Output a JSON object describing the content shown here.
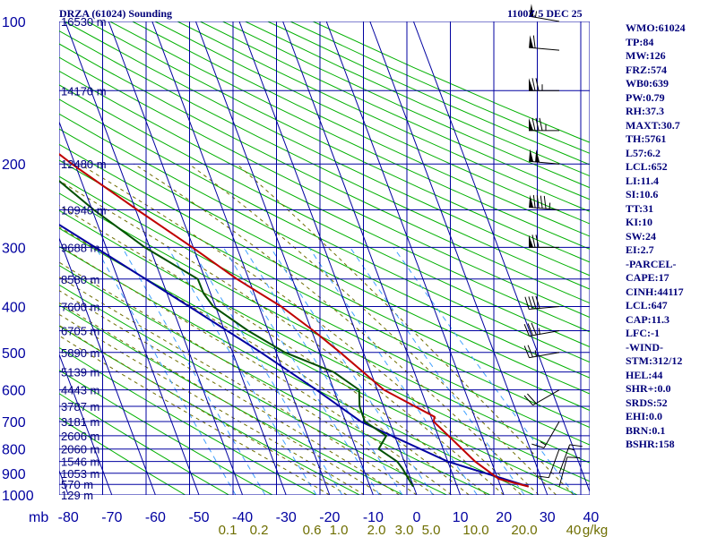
{
  "header": {
    "title": "DRZA (61024) Sounding",
    "time": "1100Z  5 DEC 25"
  },
  "indices": [
    "WMO:61024",
    "TP:84",
    "MW:126",
    "FRZ:574",
    "WB0:639",
    "PW:0.79",
    "RH:37.3",
    "MAXT:30.7",
    "TH:5761",
    "L57:6.2",
    "LCL:652",
    "LI:11.4",
    "SI:10.6",
    "TT:31",
    "KI:10",
    "SW:24",
    "EI:2.7",
    "-PARCEL-",
    "CAPE:17",
    "CINH:44117",
    "LCL:647",
    "CAP:11.3",
    "LFC:-1",
    "-WIND-",
    "STM:312/12",
    "HEL:44",
    "SHR+:0.0",
    "SRDS:52",
    "EHI:0.0",
    "BRN:0.1",
    "BSHR:158"
  ],
  "colors": {
    "temperature": "#c00000",
    "dewpoint": "#005000",
    "parcel": "#0000a0",
    "grid": "#0000a0",
    "dry_adiabats": "#00b000",
    "moist_adiabats": "#6e6e00",
    "mixing_ratio": "#40a0ff",
    "labels": "#00007a"
  },
  "chart_data": {
    "type": "skew-t",
    "units_label": "mb",
    "pressure_ticks": [
      "100",
      "200",
      "300",
      "400",
      "500",
      "600",
      "700",
      "800",
      "900",
      "1000"
    ],
    "pressure_levels": [
      100,
      200,
      300,
      400,
      500,
      600,
      700,
      800,
      900,
      1000
    ],
    "temperature_ticks": [
      "-80",
      "-70",
      "-60",
      "-50",
      "-40",
      "-30",
      "-20",
      "-10",
      "0",
      "10",
      "20",
      "30",
      "40"
    ],
    "temperature_values": [
      -80,
      -70,
      -60,
      -50,
      -40,
      -30,
      -20,
      -10,
      0,
      10,
      20,
      30,
      40
    ],
    "mixing_ratio_ticks": [
      "0.1",
      "0.2",
      "0.6",
      "1.0",
      "2.0",
      "3.0",
      "5.0",
      "10.0",
      "20.0",
      "40",
      "g/kg"
    ],
    "height_labels": [
      {
        "p": 100,
        "text": "16530 m"
      },
      {
        "p": 140,
        "text": "14170 m"
      },
      {
        "p": 200,
        "text": "12480 m"
      },
      {
        "p": 250,
        "text": "10940 m"
      },
      {
        "p": 300,
        "text": "9688 m"
      },
      {
        "p": 350,
        "text": "8580 m"
      },
      {
        "p": 400,
        "text": "7600 m"
      },
      {
        "p": 450,
        "text": "6705 m"
      },
      {
        "p": 500,
        "text": "5890 m"
      },
      {
        "p": 550,
        "text": "5139 m"
      },
      {
        "p": 600,
        "text": "4443 m"
      },
      {
        "p": 650,
        "text": "3787 m"
      },
      {
        "p": 700,
        "text": "3181 m"
      },
      {
        "p": 750,
        "text": "2606 m"
      },
      {
        "p": 800,
        "text": "2060 m"
      },
      {
        "p": 850,
        "text": "1546 m"
      },
      {
        "p": 900,
        "text": "1053 m"
      },
      {
        "p": 950,
        "text": "570 m"
      },
      {
        "p": 1000,
        "text": "129 m"
      }
    ],
    "temperature_profile": [
      {
        "p": 960,
        "t": 26.4
      },
      {
        "p": 925,
        "t": 20.2
      },
      {
        "p": 850,
        "t": 16.3
      },
      {
        "p": 700,
        "t": 10.2
      },
      {
        "p": 684,
        "t": 10.8
      },
      {
        "p": 600,
        "t": 1.5
      },
      {
        "p": 500,
        "t": -5.3
      },
      {
        "p": 450,
        "t": -9.6
      },
      {
        "p": 400,
        "t": -14.9
      },
      {
        "p": 350,
        "t": -22.7
      },
      {
        "p": 300,
        "t": -30.2
      },
      {
        "p": 250,
        "t": -39.6
      },
      {
        "p": 200,
        "t": -50.7
      },
      {
        "p": 150,
        "t": -63.1
      },
      {
        "p": 125,
        "t": -70.1
      },
      {
        "p": 100,
        "t": -77.1
      }
    ],
    "dewpoint_profile": [
      {
        "p": 960,
        "t": -0.1
      },
      {
        "p": 925,
        "t": -0.5
      },
      {
        "p": 880,
        "t": -1.0
      },
      {
        "p": 850,
        "t": -1.6
      },
      {
        "p": 800,
        "t": -4.8
      },
      {
        "p": 750,
        "t": -1.9
      },
      {
        "p": 700,
        "t": -5.6
      },
      {
        "p": 650,
        "t": -5.5
      },
      {
        "p": 600,
        "t": -4.2
      },
      {
        "p": 550,
        "t": -8.5
      },
      {
        "p": 500,
        "t": -18.0
      },
      {
        "p": 450,
        "t": -24.6
      },
      {
        "p": 400,
        "t": -30.5
      },
      {
        "p": 375,
        "t": -31.6
      },
      {
        "p": 350,
        "t": -31.7
      },
      {
        "p": 300,
        "t": -41.1
      },
      {
        "p": 250,
        "t": -49.6
      },
      {
        "p": 200,
        "t": -58.3
      },
      {
        "p": 150,
        "t": -70.4
      },
      {
        "p": 125,
        "t": -76.6
      },
      {
        "p": 100,
        "t": -82.3
      }
    ],
    "parcel_profile": [
      {
        "p": 960,
        "t": 26.4
      },
      {
        "p": 850,
        "t": 10.0
      },
      {
        "p": 700,
        "t": -6.5
      },
      {
        "p": 600,
        "t": -14.0
      },
      {
        "p": 500,
        "t": -23.5
      },
      {
        "p": 400,
        "t": -36.0
      },
      {
        "p": 300,
        "t": -52.5
      },
      {
        "p": 250,
        "t": -63.0
      },
      {
        "p": 200,
        "t": -75.5
      },
      {
        "p": 160,
        "t": -88.0
      }
    ],
    "wind_barbs": [
      {
        "p": 100,
        "dir": 280,
        "spd": 55
      },
      {
        "p": 115,
        "dir": 275,
        "spd": 60
      },
      {
        "p": 140,
        "dir": 270,
        "spd": 75
      },
      {
        "p": 170,
        "dir": 270,
        "spd": 85
      },
      {
        "p": 200,
        "dir": 275,
        "spd": 100
      },
      {
        "p": 250,
        "dir": 275,
        "spd": 95
      },
      {
        "p": 300,
        "dir": 270,
        "spd": 70
      },
      {
        "p": 400,
        "dir": 265,
        "spd": 40
      },
      {
        "p": 450,
        "dir": 260,
        "spd": 35
      },
      {
        "p": 500,
        "dir": 260,
        "spd": 25
      },
      {
        "p": 600,
        "dir": 240,
        "spd": 20
      },
      {
        "p": 700,
        "dir": 210,
        "spd": 15
      },
      {
        "p": 800,
        "dir": 200,
        "spd": 10
      },
      {
        "p": 900,
        "dir": 20,
        "spd": 15
      },
      {
        "p": 960,
        "dir": 15,
        "spd": 10
      }
    ]
  }
}
